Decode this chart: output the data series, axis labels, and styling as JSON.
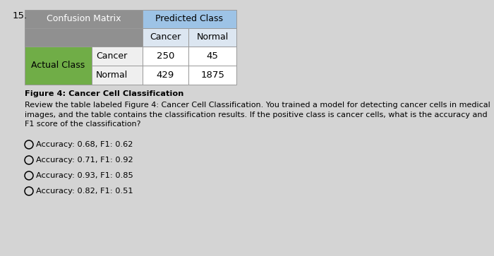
{
  "question_number": "15.",
  "table": {
    "confusion_matrix_label": "Confusion Matrix",
    "predicted_class_label": "Predicted Class",
    "cancer_col": "Cancer",
    "normal_col": "Normal",
    "actual_class_label": "Actual Class",
    "row_labels": [
      "Cancer",
      "Normal"
    ],
    "values": [
      [
        250,
        45
      ],
      [
        429,
        1875
      ]
    ],
    "header_bg": "#909090",
    "predicted_bg": "#9dc3e6",
    "actual_bg": "#70ad47",
    "sub_header_bg": "#dce6f1",
    "row_label_bg": "#efefef",
    "cell_bg": "#ffffff",
    "grid_color": "#aaaaaa"
  },
  "figure_caption": "Figure 4: Cancer Cell Classification",
  "body_text": "Review the table labeled Figure 4: Cancer Cell Classification. You trained a model for detecting cancer cells in medical images, and the table contains the classification results. If the positive class is cancer cells, what is the accuracy and F1 score of the classification?",
  "options": [
    "Accuracy: 0.68, F1: 0.62",
    "Accuracy: 0.71, F1: 0.92",
    "Accuracy: 0.93, F1: 0.85",
    "Accuracy: 0.82, F1: 0.51"
  ],
  "bg_color": "#d4d4d4",
  "text_color": "#000000",
  "font_size_body": 8.0,
  "font_size_caption": 8.2,
  "font_size_options": 8.2,
  "font_size_table_header": 9.0,
  "font_size_table_data": 9.5,
  "font_size_qnum": 9.5
}
